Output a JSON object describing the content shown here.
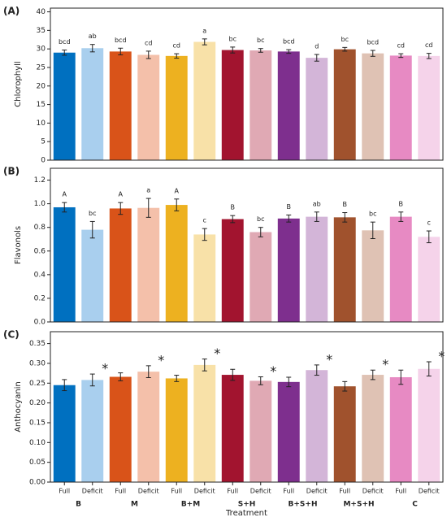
{
  "chart_data": [
    {
      "type": "bar",
      "panel_label": "(A)",
      "ylabel": "Chlorophyll",
      "values": [
        29.0,
        30.2,
        29.3,
        28.4,
        28.1,
        31.9,
        29.7,
        29.6,
        29.3,
        27.6,
        29.9,
        28.8,
        28.2,
        28.1
      ],
      "errors": [
        0.7,
        1.0,
        0.9,
        1.0,
        0.6,
        0.8,
        0.8,
        0.5,
        0.5,
        0.9,
        0.5,
        0.8,
        0.5,
        0.7
      ],
      "letters": [
        "bcd",
        "ab",
        "bcd",
        "cd",
        "cd",
        "a",
        "bc",
        "bc",
        "bcd",
        "d",
        "bc",
        "bcd",
        "cd",
        "cd"
      ],
      "colors": [
        "#0070c0",
        "#a9cfee",
        "#d95319",
        "#f4c0aa",
        "#edb120",
        "#f8e1a8",
        "#a2142f",
        "#e0a9b4",
        "#7e2f8e",
        "#d3b5d8",
        "#a0522d",
        "#dfc2b4",
        "#e78ac3",
        "#f5d3ea"
      ],
      "ylim": [
        0,
        41
      ],
      "yticks": [
        0,
        5,
        10,
        15,
        20,
        25,
        30,
        35,
        40
      ]
    },
    {
      "type": "bar",
      "panel_label": "(B)",
      "ylabel": "Flavonols",
      "values": [
        0.97,
        0.78,
        0.96,
        0.965,
        0.99,
        0.74,
        0.87,
        0.76,
        0.875,
        0.89,
        0.885,
        0.775,
        0.89,
        0.72
      ],
      "errors": [
        0.04,
        0.07,
        0.05,
        0.08,
        0.05,
        0.05,
        0.03,
        0.04,
        0.03,
        0.04,
        0.04,
        0.07,
        0.04,
        0.05
      ],
      "letters": [
        "A",
        "bc",
        "A",
        "a",
        "A",
        "c",
        "B",
        "bc",
        "B",
        "ab",
        "B",
        "bc",
        "B",
        "c"
      ],
      "colors": [
        "#0070c0",
        "#a9cfee",
        "#d95319",
        "#f4c0aa",
        "#edb120",
        "#f8e1a8",
        "#a2142f",
        "#e0a9b4",
        "#7e2f8e",
        "#d3b5d8",
        "#a0522d",
        "#dfc2b4",
        "#e78ac3",
        "#f5d3ea"
      ],
      "ylim": [
        0,
        1.3
      ],
      "yticks": [
        {
          "value": 0,
          "label": "0.0"
        },
        0.2,
        0.4,
        0.6,
        0.8,
        {
          "value": 1,
          "label": "1.0"
        },
        1.2
      ]
    },
    {
      "type": "bar",
      "panel_label": "(C)",
      "ylabel": "Anthocyanin",
      "xlabel": "Treatment",
      "categories": [
        "Full",
        "Deficit",
        "Full",
        "Deficit",
        "Full",
        "Deficit",
        "Full",
        "Deficit",
        "Full",
        "Deficit",
        "Full",
        "Deficit",
        "Full",
        "Deficit"
      ],
      "groups": [
        "B",
        "M",
        "B+M",
        "S+H",
        "B+S+H",
        "M+S+H",
        "C"
      ],
      "values": [
        0.245,
        0.258,
        0.266,
        0.279,
        0.262,
        0.296,
        0.271,
        0.256,
        0.253,
        0.283,
        0.242,
        0.271,
        0.265,
        0.286
      ],
      "errors": [
        0.014,
        0.015,
        0.01,
        0.015,
        0.008,
        0.015,
        0.014,
        0.01,
        0.012,
        0.013,
        0.012,
        0.012,
        0.018,
        0.018
      ],
      "annotations": [
        null,
        "*",
        null,
        "*",
        null,
        "*",
        null,
        "*",
        null,
        "*",
        null,
        "*",
        null,
        "*"
      ],
      "colors": [
        "#0070c0",
        "#a9cfee",
        "#d95319",
        "#f4c0aa",
        "#edb120",
        "#f8e1a8",
        "#a2142f",
        "#e0a9b4",
        "#7e2f8e",
        "#d3b5d8",
        "#a0522d",
        "#dfc2b4",
        "#e78ac3",
        "#f5d3ea"
      ],
      "ylim": [
        0,
        0.38
      ],
      "yticks": [
        {
          "value": 0,
          "label": "0.00"
        },
        0.05,
        {
          "value": 0.1,
          "label": "0.10"
        },
        0.15,
        {
          "value": 0.2,
          "label": "0.20"
        },
        0.25,
        {
          "value": 0.3,
          "label": "0.30"
        },
        0.35
      ]
    }
  ]
}
